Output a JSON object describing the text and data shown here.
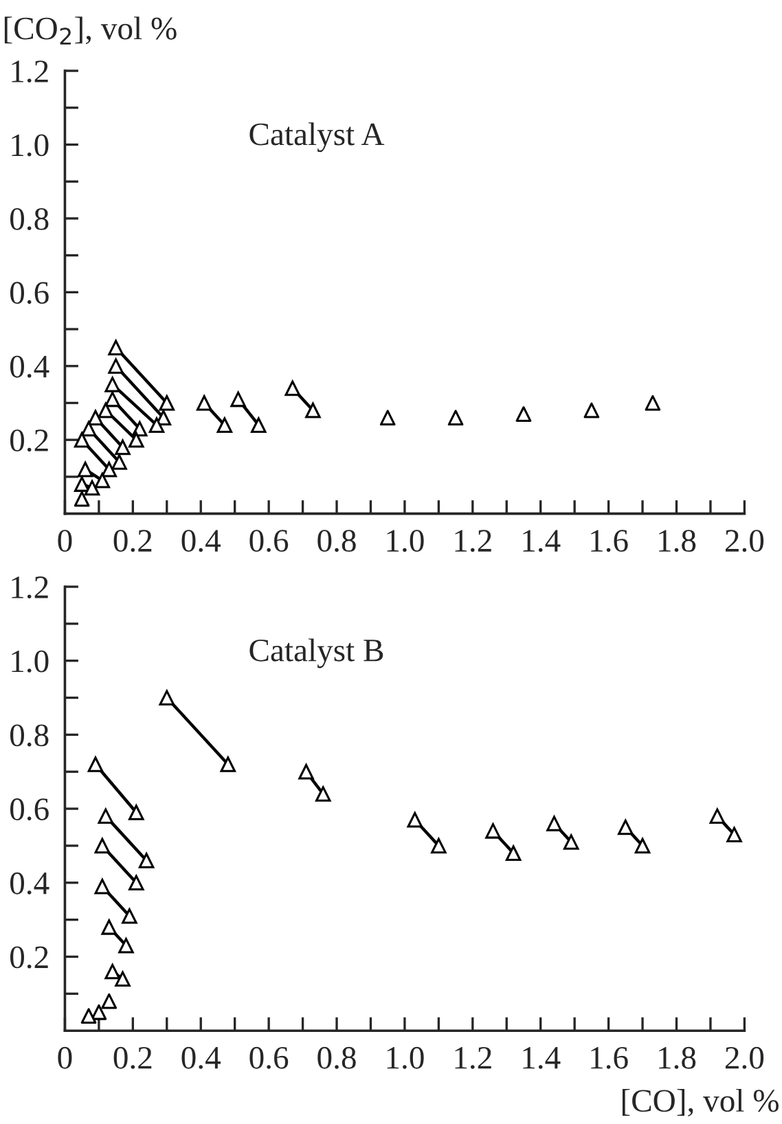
{
  "chart_data": [
    {
      "type": "line",
      "ylabel": "[CO$_{2}$], vol %",
      "annotations": [
        "Catalyst A"
      ],
      "marker": "triangle",
      "line_style": "solid",
      "grid": false,
      "legend": false,
      "xlim": [
        0,
        2.0
      ],
      "ylim": [
        0,
        1.2
      ],
      "xticks": [
        0,
        {
          "value": 0.1,
          "label": null
        },
        0.2,
        {
          "value": 0.3,
          "label": null
        },
        0.4,
        {
          "value": 0.5,
          "label": null
        },
        0.6,
        {
          "value": 0.7,
          "label": null
        },
        0.8,
        {
          "value": 0.9,
          "label": null
        },
        {
          "value": 1,
          "label": "1.0"
        },
        {
          "value": 1.1,
          "label": null
        },
        1.2,
        {
          "value": 1.3,
          "label": null
        },
        1.4,
        {
          "value": 1.5,
          "label": null
        },
        1.6,
        {
          "value": 1.7,
          "label": null
        },
        1.8,
        {
          "value": 1.9,
          "label": null
        },
        {
          "value": 2,
          "label": "2.0"
        }
      ],
      "yticks": [
        {
          "value": 0.1,
          "label": null
        },
        0.2,
        {
          "value": 0.3,
          "label": null
        },
        0.4,
        {
          "value": 0.5,
          "label": null
        },
        0.6,
        {
          "value": 0.7,
          "label": null
        },
        0.8,
        {
          "value": 0.9,
          "label": null
        },
        {
          "value": 1,
          "label": "1.0"
        },
        {
          "value": 1.1,
          "label": null
        },
        1.2
      ],
      "series": [
        {
          "color": "#000000",
          "x": [
            0.15,
            0.3
          ],
          "values": [
            0.45,
            0.3
          ]
        },
        {
          "color": "#000000",
          "x": [
            0.15,
            0.29
          ],
          "values": [
            0.4,
            0.26
          ]
        },
        {
          "color": "#000000",
          "x": [
            0.14,
            0.27
          ],
          "values": [
            0.35,
            0.24
          ]
        },
        {
          "color": "#000000",
          "x": [
            0.14,
            0.22
          ],
          "values": [
            0.31,
            0.23
          ]
        },
        {
          "color": "#000000",
          "x": [
            0.12,
            0.21
          ],
          "values": [
            0.28,
            0.2
          ]
        },
        {
          "color": "#000000",
          "x": [
            0.09,
            0.17
          ],
          "values": [
            0.26,
            0.18
          ]
        },
        {
          "color": "#000000",
          "x": [
            0.07,
            0.16
          ],
          "values": [
            0.23,
            0.14
          ]
        },
        {
          "color": "#000000",
          "x": [
            0.05,
            0.13
          ],
          "values": [
            0.2,
            0.12
          ]
        },
        {
          "color": "#000000",
          "x": [
            0.06,
            0.11
          ],
          "values": [
            0.12,
            0.09
          ]
        },
        {
          "color": "#000000",
          "x": [
            0.05,
            0.08
          ],
          "values": [
            0.08,
            0.07
          ]
        },
        {
          "color": "#000000",
          "x": [
            0.41,
            0.47
          ],
          "values": [
            0.3,
            0.24
          ]
        },
        {
          "color": "#000000",
          "x": [
            0.51,
            0.57
          ],
          "values": [
            0.31,
            0.24
          ]
        },
        {
          "color": "#000000",
          "x": [
            0.67,
            0.73
          ],
          "values": [
            0.34,
            0.28
          ]
        },
        {
          "type": "scatter",
          "color": "#000000",
          "x": [
            0.05,
            0.95,
            1.15,
            1.35,
            1.55,
            1.73
          ],
          "values": [
            0.04,
            0.26,
            0.26,
            0.27,
            0.28,
            0.3
          ]
        }
      ]
    },
    {
      "type": "line",
      "xlabel": "[CO], vol %",
      "annotations": [
        "Catalyst B"
      ],
      "marker": "triangle",
      "line_style": "solid",
      "grid": false,
      "legend": false,
      "xlim": [
        0,
        2.0
      ],
      "ylim": [
        0,
        1.2
      ],
      "xticks": [
        0,
        {
          "value": 0.1,
          "label": null
        },
        0.2,
        {
          "value": 0.3,
          "label": null
        },
        0.4,
        {
          "value": 0.5,
          "label": null
        },
        0.6,
        {
          "value": 0.7,
          "label": null
        },
        0.8,
        {
          "value": 0.9,
          "label": null
        },
        {
          "value": 1,
          "label": "1.0"
        },
        {
          "value": 1.1,
          "label": null
        },
        1.2,
        {
          "value": 1.3,
          "label": null
        },
        1.4,
        {
          "value": 1.5,
          "label": null
        },
        1.6,
        {
          "value": 1.7,
          "label": null
        },
        1.8,
        {
          "value": 1.9,
          "label": null
        },
        {
          "value": 2,
          "label": "2.0"
        }
      ],
      "yticks": [
        {
          "value": 0.1,
          "label": null
        },
        0.2,
        {
          "value": 0.3,
          "label": null
        },
        0.4,
        {
          "value": 0.5,
          "label": null
        },
        0.6,
        {
          "value": 0.7,
          "label": null
        },
        0.8,
        {
          "value": 0.9,
          "label": null
        },
        {
          "value": 1,
          "label": "1.0"
        },
        {
          "value": 1.1,
          "label": null
        },
        1.2
      ],
      "series": [
        {
          "color": "#000000",
          "x": [
            0.09,
            0.21
          ],
          "values": [
            0.72,
            0.59
          ]
        },
        {
          "color": "#000000",
          "x": [
            0.12,
            0.24
          ],
          "values": [
            0.58,
            0.46
          ]
        },
        {
          "color": "#000000",
          "x": [
            0.11,
            0.21
          ],
          "values": [
            0.5,
            0.4
          ]
        },
        {
          "color": "#000000",
          "x": [
            0.11,
            0.19
          ],
          "values": [
            0.39,
            0.31
          ]
        },
        {
          "color": "#000000",
          "x": [
            0.13,
            0.18
          ],
          "values": [
            0.28,
            0.23
          ]
        },
        {
          "color": "#000000",
          "x": [
            0.14,
            0.17
          ],
          "values": [
            0.16,
            0.14
          ]
        },
        {
          "color": "#000000",
          "x": [
            0.3,
            0.48
          ],
          "values": [
            0.9,
            0.72
          ]
        },
        {
          "color": "#000000",
          "x": [
            0.71,
            0.76
          ],
          "values": [
            0.7,
            0.64
          ]
        },
        {
          "color": "#000000",
          "x": [
            1.03,
            1.1
          ],
          "values": [
            0.57,
            0.5
          ]
        },
        {
          "color": "#000000",
          "x": [
            1.26,
            1.32
          ],
          "values": [
            0.54,
            0.48
          ]
        },
        {
          "color": "#000000",
          "x": [
            1.44,
            1.49
          ],
          "values": [
            0.56,
            0.51
          ]
        },
        {
          "color": "#000000",
          "x": [
            1.65,
            1.7
          ],
          "values": [
            0.55,
            0.5
          ]
        },
        {
          "color": "#000000",
          "x": [
            1.92,
            1.97
          ],
          "values": [
            0.58,
            0.53
          ]
        },
        {
          "type": "scatter",
          "color": "#000000",
          "x": [
            0.13,
            0.1,
            0.07
          ],
          "values": [
            0.08,
            0.05,
            0.04
          ]
        }
      ]
    }
  ]
}
